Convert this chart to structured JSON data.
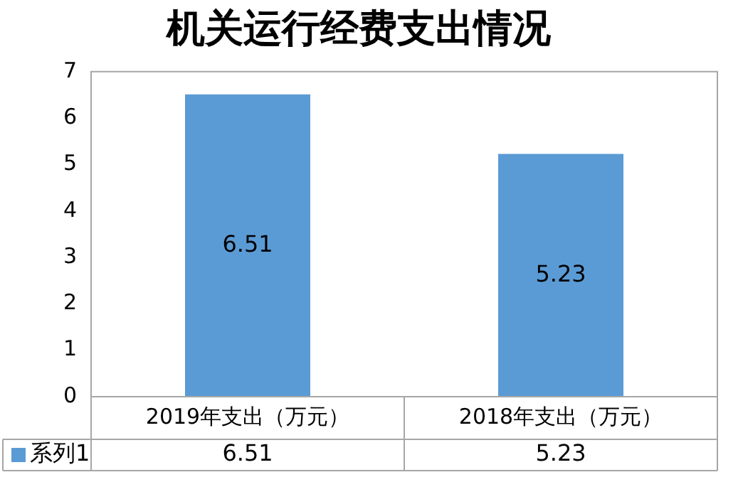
{
  "chart_data": {
    "type": "bar",
    "title": "机关运行经费支出情况",
    "categories": [
      "2019年支出（万元）",
      "2018年支出（万元）"
    ],
    "series": [
      {
        "name": "系列1",
        "color": "#5b9bd5",
        "values": [
          6.51,
          5.23
        ],
        "value_labels": [
          "6.51",
          "5.23"
        ]
      }
    ],
    "ylim": [
      0,
      7
    ],
    "yticks": [
      0,
      1,
      2,
      3,
      4,
      5,
      6,
      7
    ],
    "grid": false,
    "annotations": [
      "6.51",
      "5.23"
    ]
  }
}
